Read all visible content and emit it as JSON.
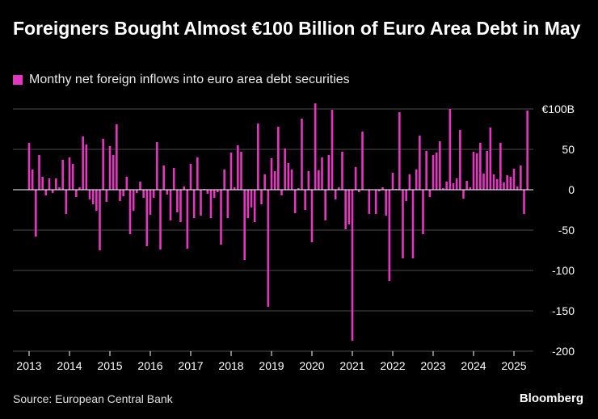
{
  "header": {
    "title": "Foreigners Bought Almost €100 Billion of Euro Area Debt in May"
  },
  "legend": {
    "label": "Monthy net foreign inflows into euro area debt securities"
  },
  "footer": {
    "source": "Source: European Central Bank",
    "brand": "Bloomberg"
  },
  "colors": {
    "background": "#000000",
    "bar": "#e536c1",
    "grid": "#4a4a4a",
    "zero_line": "#ffffff",
    "text": "#ffffff"
  },
  "chart_data": {
    "type": "bar",
    "grid": true,
    "legend_position": "top-left",
    "ylim": [
      -200,
      100
    ],
    "yticks": [
      {
        "value": 100,
        "label": "€100B"
      },
      {
        "value": 50,
        "label": "50"
      },
      {
        "value": 0,
        "label": "0"
      },
      {
        "value": -50,
        "label": "-50"
      },
      {
        "value": -100,
        "label": "-100"
      },
      {
        "value": -150,
        "label": "-150"
      },
      {
        "value": -200,
        "label": "-200"
      }
    ],
    "xlim": [
      "2013-01",
      "2025-05"
    ],
    "xticks": [
      "2013",
      "2014",
      "2015",
      "2016",
      "2017",
      "2018",
      "2019",
      "2020",
      "2021",
      "2022",
      "2023",
      "2024",
      "2025"
    ],
    "series": [
      {
        "start": "2013-01",
        "frequency": "monthly",
        "values": [
          58,
          25,
          -58,
          43,
          16,
          -7,
          14,
          -4,
          14,
          3,
          37,
          -30,
          40,
          32,
          -9,
          3,
          66,
          56,
          -12,
          -18,
          -26,
          -75,
          63,
          -15,
          54,
          43,
          81,
          -14,
          -8,
          16,
          -55,
          -26,
          -4,
          10,
          -10,
          -70,
          -31,
          -10,
          59,
          -74,
          30,
          -6,
          -38,
          27,
          -28,
          -40,
          4,
          -73,
          32,
          -35,
          40,
          -32,
          1,
          -5,
          -35,
          -10,
          -3,
          -68,
          25,
          -35,
          46,
          3,
          55,
          47,
          -87,
          -35,
          -22,
          -40,
          82,
          -18,
          19,
          -145,
          39,
          23,
          78,
          -7,
          51,
          33,
          25,
          -29,
          2,
          88,
          -25,
          23,
          -65,
          107,
          24,
          40,
          -38,
          43,
          99,
          -12,
          3,
          47,
          -49,
          -43,
          -187,
          28,
          -3,
          72,
          0,
          -30,
          0,
          -30,
          -2,
          3,
          -32,
          -113,
          21,
          1,
          96,
          -85,
          -14,
          19,
          -85,
          25,
          67,
          -55,
          48,
          -9,
          43,
          46,
          60,
          2,
          10,
          100,
          8,
          14,
          74,
          -11,
          11,
          3,
          47,
          45,
          58,
          20,
          48,
          77,
          19,
          13,
          58,
          9,
          18,
          16,
          26,
          4,
          30,
          -30,
          98
        ]
      }
    ]
  }
}
